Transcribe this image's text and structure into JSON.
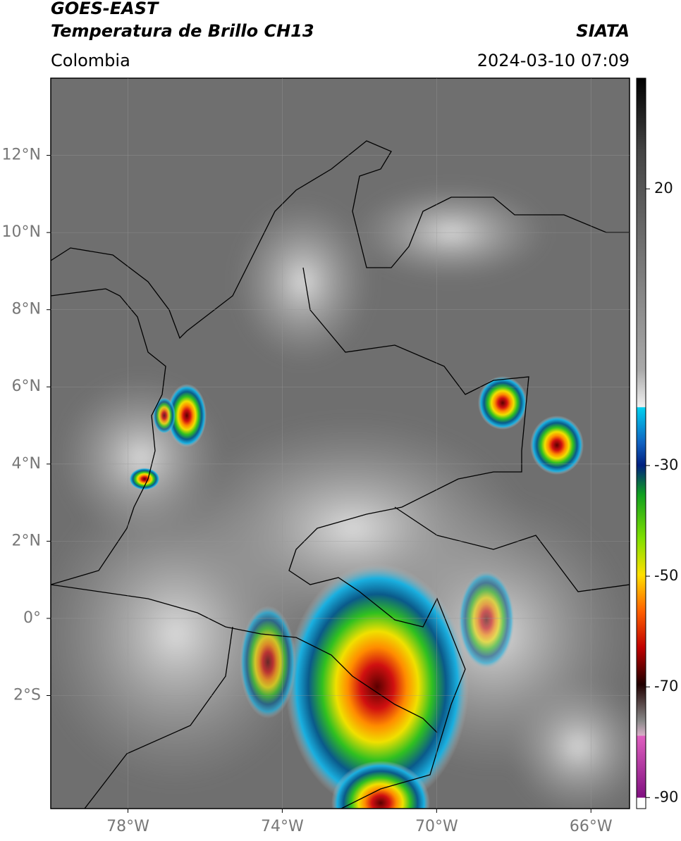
{
  "header": {
    "title": "GOES-EAST",
    "subtitle": "Temperatura de Brillo CH13",
    "region": "Colombia",
    "source": "SIATA",
    "datetime": "2024-03-10 07:09"
  },
  "map": {
    "xlim": [
      -80,
      -65
    ],
    "ylim": [
      -4.93,
      14
    ],
    "xticks": [
      {
        "value": -78,
        "label": "78°W"
      },
      {
        "value": -74,
        "label": "74°W"
      },
      {
        "value": -70,
        "label": "70°W"
      },
      {
        "value": -66,
        "label": "66°W"
      }
    ],
    "yticks": [
      {
        "value": 12,
        "label": "12°N"
      },
      {
        "value": 10,
        "label": "10°N"
      },
      {
        "value": 8,
        "label": "8°N"
      },
      {
        "value": 6,
        "label": "6°N"
      },
      {
        "value": 4,
        "label": "4°N"
      },
      {
        "value": 2,
        "label": "2°N"
      },
      {
        "value": 0,
        "label": "0°"
      },
      {
        "value": -2,
        "label": "2°S"
      }
    ],
    "grid": true
  },
  "colorbar": {
    "lim": [
      -92,
      40
    ],
    "ticks": [
      20,
      -30,
      -50,
      -70,
      -90
    ]
  }
}
